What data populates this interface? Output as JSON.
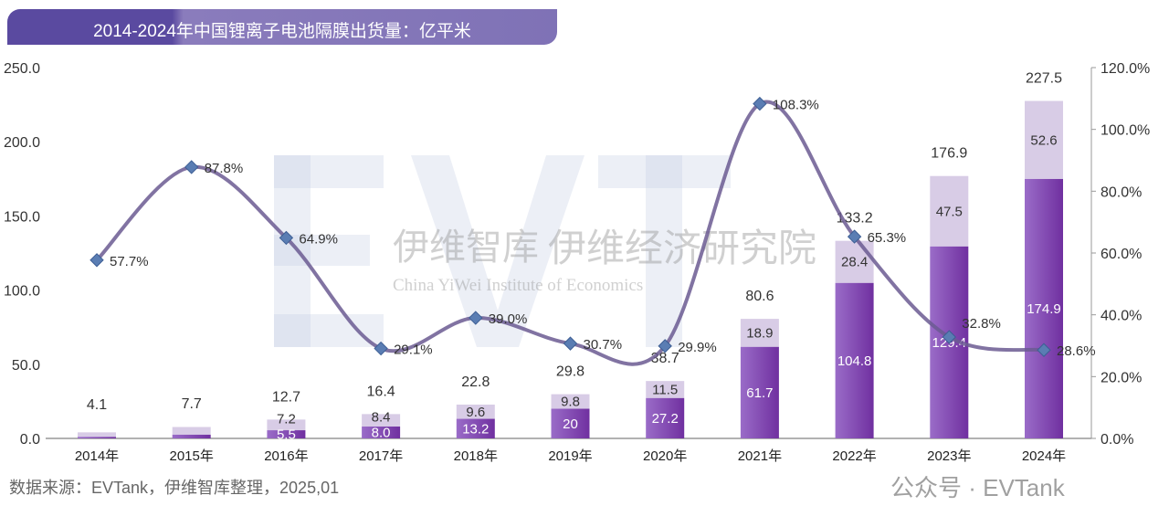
{
  "title": "2014-2024年中国锂离子电池隔膜出货量：亿平米",
  "source": "数据来源：EVTank，伊维智库整理，2025,01",
  "watermarks": {
    "logo": "EVTank",
    "cn_short": "伊维智库",
    "cn_long": "伊维经济研究院",
    "en": "China YiWei Institute of Economics",
    "wechat": "公众号 · EVTank"
  },
  "colors": {
    "bar_bottom": "#7a3cae",
    "bar_top": "#d8cce6",
    "line": "#6b5b92",
    "marker": "#5a7db3"
  },
  "chart_data": {
    "type": "bar",
    "title": "2014-2024年中国锂离子电池隔膜出货量：亿平米",
    "categories": [
      "2014年",
      "2015年",
      "2016年",
      "2017年",
      "2018年",
      "2019年",
      "2020年",
      "2021年",
      "2022年",
      "2023年",
      "2024年"
    ],
    "series": [
      {
        "name": "bottom",
        "values": [
          1.0,
          2.5,
          5.5,
          8.0,
          13.2,
          20,
          27.2,
          61.7,
          104.8,
          129.4,
          174.9
        ],
        "labels": [
          "",
          "",
          "5.5",
          "8.0",
          "13.2",
          "20",
          "27.2",
          "61.7",
          "104.8",
          "129.4",
          "174.9"
        ]
      },
      {
        "name": "top",
        "values": [
          3.1,
          5.2,
          7.2,
          8.4,
          9.6,
          9.8,
          11.5,
          18.9,
          28.4,
          47.5,
          52.6
        ],
        "labels": [
          "",
          "",
          "7.2",
          "8.4",
          "9.6",
          "9.8",
          "11.5",
          "18.9",
          "28.4",
          "47.5",
          "52.6"
        ]
      }
    ],
    "totals": [
      "4.1",
      "7.7",
      "12.7",
      "16.4",
      "22.8",
      "29.8",
      "38.7",
      "80.6",
      "133.2",
      "176.9",
      "227.5"
    ],
    "growth": {
      "type": "line",
      "values": [
        57.7,
        87.8,
        64.9,
        29.1,
        39.0,
        30.7,
        29.9,
        108.3,
        65.3,
        32.8,
        28.6
      ],
      "labels": [
        "57.7%",
        "87.8%",
        "64.9%",
        "29.1%",
        "39.0%",
        "30.7%",
        "29.9%",
        "108.3%",
        "65.3%",
        "32.8%",
        "28.6%"
      ]
    },
    "ylim": [
      0,
      250
    ],
    "yticks": [
      "0.0",
      "50.0",
      "100.0",
      "150.0",
      "200.0",
      "250.0"
    ],
    "y2lim": [
      0,
      120
    ],
    "y2ticks": [
      "0.0%",
      "20.0%",
      "40.0%",
      "60.0%",
      "80.0%",
      "100.0%",
      "120.0%"
    ]
  }
}
